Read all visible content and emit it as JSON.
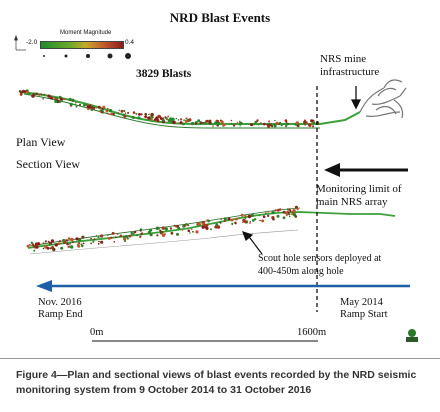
{
  "title": "NRD Blast Events",
  "legend": {
    "title": "Moment Magnitude",
    "min": "-2.0",
    "max": "0.4"
  },
  "blast_count": "3829 Blasts",
  "labels": {
    "mine_infrastructure": [
      "NRS mine",
      "infrastructure"
    ],
    "plan_view": "Plan View",
    "section_view": "Section View",
    "monitoring_limit": [
      "Monitoring limit of",
      "main NRS array"
    ],
    "scout_sensors": [
      "Scout hole sensors deployed at",
      "400-450m along hole"
    ]
  },
  "timeline": {
    "end_date": "Nov. 2016",
    "end_label": "Ramp End",
    "start_date": "May 2014",
    "start_label": "Ramp Start",
    "color": "#1f5fa8"
  },
  "scale": {
    "start": "0m",
    "end": "1600m"
  },
  "caption": "Figure 4—Plan and sectional views of blast events recorded by the NRD seismic monitoring system from 9 October 2014 to 31 October 2016",
  "colors": {
    "low_magnitude": "#1f8a2a",
    "high_magnitude": "#8b1a1a",
    "ramp_line": "#3aa13a"
  }
}
